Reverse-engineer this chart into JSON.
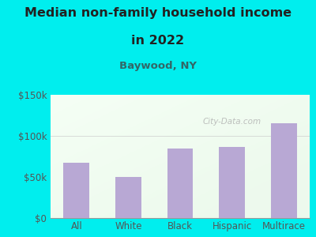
{
  "title_line1": "Median non-family household income",
  "title_line2": "in 2022",
  "subtitle": "Baywood, NY",
  "categories": [
    "All",
    "White",
    "Black",
    "Hispanic",
    "Multirace"
  ],
  "values": [
    67000,
    50000,
    85000,
    87000,
    115000
  ],
  "bar_color": "#b8a8d4",
  "ylim": [
    0,
    150000
  ],
  "yticks": [
    0,
    50000,
    100000,
    150000
  ],
  "ytick_labels": [
    "$0",
    "$50k",
    "$100k",
    "$150k"
  ],
  "bg_outer": "#00EEEE",
  "title_color": "#222222",
  "subtitle_color": "#336666",
  "tick_color": "#555555",
  "watermark": "City-Data.com",
  "title_fontsize": 11.5,
  "subtitle_fontsize": 9.5,
  "tick_fontsize": 8.5
}
